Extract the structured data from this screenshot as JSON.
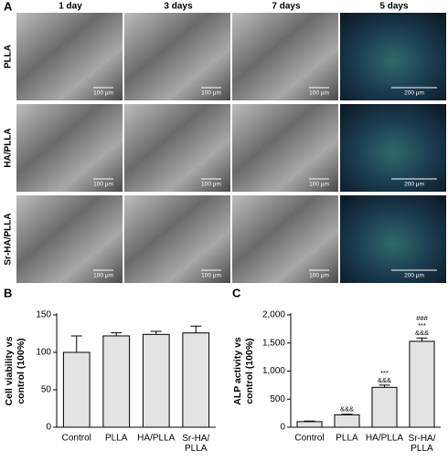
{
  "panel_a": {
    "label": "A",
    "columns": [
      "1 day",
      "3 days",
      "7 days",
      "5 days"
    ],
    "rows": [
      {
        "label": "PLLA",
        "scales": [
          "100 μm",
          "100 μm",
          "100 μm",
          "200 μm"
        ]
      },
      {
        "label": "HA/PLLA",
        "scales": [
          "100 μm",
          "100 μm",
          "100 μm",
          "200 μm"
        ]
      },
      {
        "label": "Sr-HA/PLLA",
        "scales": [
          "100 μm",
          "100 μm",
          "100 μm",
          "200 μm"
        ]
      }
    ]
  },
  "chart_data": [
    {
      "type": "bar",
      "panel": "B",
      "ylabel": [
        "Cell viability vs",
        "control (100%)"
      ],
      "categories": [
        "Control",
        "PLLA",
        "HA/PLLA",
        "Sr-HA/\nPLLA"
      ],
      "values": [
        100,
        122,
        124,
        126
      ],
      "errors": [
        22,
        4,
        4,
        9
      ],
      "color": "#e3e3e3",
      "ylim": [
        0,
        150
      ],
      "yticks": [
        0,
        50,
        100,
        150
      ]
    },
    {
      "type": "bar",
      "panel": "C",
      "ylabel": [
        "ALP activity vs",
        "control (100%)"
      ],
      "categories": [
        "Control",
        "PLLA",
        "HA/PLLA",
        "Sr-HA/\nPLLA"
      ],
      "values": [
        100,
        220,
        710,
        1530
      ],
      "errors": [
        10,
        12,
        40,
        60
      ],
      "significance": [
        null,
        [
          "&&&"
        ],
        [
          "***",
          "&&&"
        ],
        [
          "###",
          "***",
          "&&&"
        ]
      ],
      "color": "#e3e3e3",
      "ylim": [
        0,
        2000
      ],
      "yticks": [
        0,
        500,
        {
          "value": 1000,
          "label": "1,000"
        },
        {
          "value": 1500,
          "label": "1,500"
        },
        {
          "value": 2000,
          "label": "2,000"
        }
      ]
    }
  ]
}
